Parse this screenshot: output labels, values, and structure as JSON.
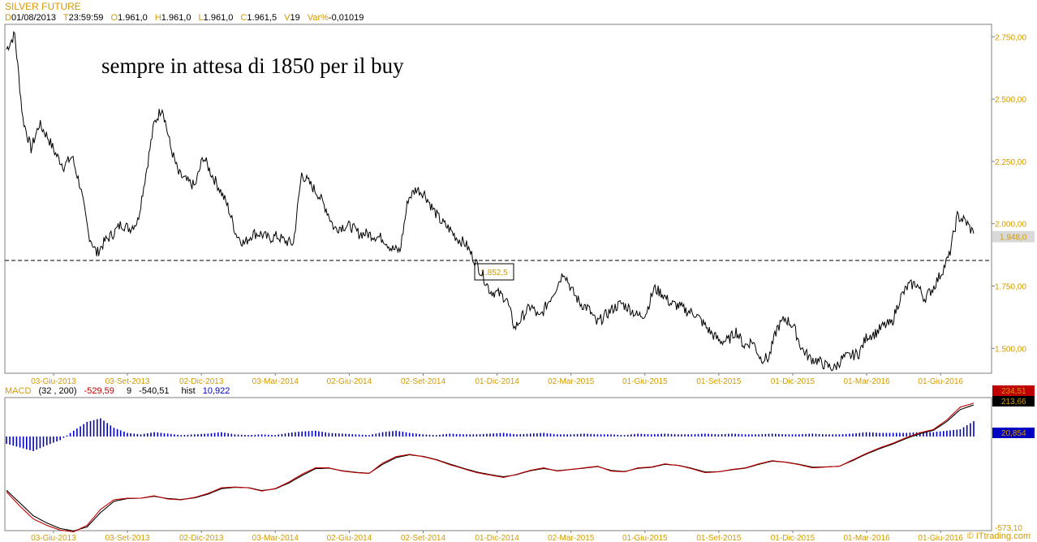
{
  "header": {
    "title": "SILVER FUTURE",
    "ohlc": [
      {
        "key": "D",
        "value": "01/08/2013"
      },
      {
        "key": "T",
        "value": "23:59:59"
      },
      {
        "key": "O",
        "value": "1.961,0"
      },
      {
        "key": "H",
        "value": "1.961,0"
      },
      {
        "key": "L",
        "value": "1.961,0"
      },
      {
        "key": "C",
        "value": "1.961,5"
      },
      {
        "key": "V",
        "value": "19"
      },
      {
        "key": "Var%",
        "value": "-0,01019"
      }
    ]
  },
  "annotation": "sempre in attesa di 1850 per il buy",
  "watermark": "© ITtrading.com",
  "chart_data": [
    {
      "type": "line",
      "x_ticks": [
        "03-Giu-2013",
        "03-Set-2013",
        "02-Dic-2013",
        "03-Mar-2014",
        "02-Giu-2014",
        "02-Set-2014",
        "01-Dic-2014",
        "02-Mar-2015",
        "01-Giu-2015",
        "01-Set-2015",
        "01-Dic-2015",
        "01-Mar-2016",
        "01-Giu-2016"
      ],
      "y_ticks": [
        "2.750,00",
        "2.500,00",
        "2.250,00",
        "2.000,00",
        "1.750,00",
        "1.500,00"
      ],
      "ylim": [
        1400,
        2800
      ],
      "last_value_label": "1.948,0",
      "level_line": {
        "value": 1852.5,
        "label": "1.852,5"
      },
      "series": [
        {
          "values": [
            2700,
            2760,
            2420,
            2300,
            2400,
            2350,
            2280,
            2230,
            2270,
            2150,
            1960,
            1880,
            1930,
            1960,
            2000,
            1980,
            2010,
            2200,
            2400,
            2470,
            2310,
            2200,
            2170,
            2150,
            2270,
            2200,
            2140,
            2070,
            1960,
            1920,
            1960,
            1960,
            1940,
            1950,
            1930,
            1920,
            2200,
            2160,
            2120,
            2060,
            1980,
            1990,
            1990,
            1960,
            1960,
            1950,
            1940,
            1900,
            1890,
            2100,
            2140,
            2120,
            2060,
            2010,
            1980,
            1940,
            1920,
            1860,
            1800,
            1730,
            1720,
            1700,
            1580,
            1630,
            1670,
            1620,
            1680,
            1740,
            1810,
            1730,
            1680,
            1660,
            1600,
            1630,
            1660,
            1680,
            1660,
            1630,
            1640,
            1740,
            1720,
            1680,
            1670,
            1650,
            1640,
            1600,
            1560,
            1530,
            1530,
            1570,
            1510,
            1530,
            1460,
            1460,
            1580,
            1620,
            1590,
            1500,
            1460,
            1450,
            1430,
            1420,
            1460,
            1470,
            1480,
            1550,
            1560,
            1590,
            1600,
            1700,
            1750,
            1760,
            1700,
            1740,
            1800,
            1870,
            2030,
            2010,
            1960
          ]
        }
      ]
    },
    {
      "type": "line",
      "title": "MACD",
      "params": "(32 , 200)",
      "macd_value": "-529,59",
      "signal_period": "9",
      "signal_value": "-540,51",
      "hist_label": "hist",
      "hist_value": "10,922",
      "ylim": [
        -573.1,
        260
      ],
      "bottom_label": "-573,10",
      "x_ticks": [
        "03-Giu-2013",
        "03-Set-2013",
        "02-Dic-2013",
        "03-Mar-2014",
        "02-Giu-2014",
        "02-Set-2014",
        "01-Dic-2014",
        "02-Mar-2015",
        "01-Giu-2015",
        "01-Set-2015",
        "01-Dic-2015",
        "01-Mar-2016",
        "01-Giu-2016"
      ],
      "value_labels": [
        {
          "value": "234,51",
          "color": "#c00000"
        },
        {
          "value": "213,66",
          "color": "#000000"
        },
        {
          "value": "20,854",
          "color": "#0000c0"
        }
      ],
      "series": [
        {
          "name": "MACD",
          "color": "#c00000",
          "values": [
            -330,
            -420,
            -500,
            -540,
            -570,
            -580,
            -540,
            -440,
            -380,
            -370,
            -370,
            -355,
            -375,
            -380,
            -365,
            -340,
            -305,
            -300,
            -305,
            -325,
            -310,
            -270,
            -220,
            -180,
            -180,
            -200,
            -210,
            -215,
            -150,
            -110,
            -95,
            -110,
            -130,
            -160,
            -185,
            -210,
            -225,
            -240,
            -220,
            -195,
            -180,
            -200,
            -190,
            -180,
            -170,
            -200,
            -205,
            -180,
            -175,
            -155,
            -165,
            -185,
            -210,
            -205,
            -190,
            -180,
            -155,
            -135,
            -145,
            -160,
            -180,
            -175,
            -170,
            -130,
            -90,
            -55,
            -25,
            10,
            40,
            60,
            120,
            200,
            225
          ]
        },
        {
          "name": "Signal",
          "color": "#000000",
          "values": [
            -320,
            -400,
            -480,
            -525,
            -560,
            -575,
            -550,
            -460,
            -390,
            -372,
            -370,
            -358,
            -372,
            -378,
            -368,
            -345,
            -310,
            -302,
            -304,
            -322,
            -312,
            -276,
            -228,
            -185,
            -182,
            -198,
            -208,
            -214,
            -158,
            -116,
            -98,
            -108,
            -128,
            -156,
            -182,
            -206,
            -222,
            -236,
            -222,
            -198,
            -184,
            -198,
            -190,
            -182,
            -172,
            -196,
            -203,
            -183,
            -177,
            -158,
            -164,
            -182,
            -206,
            -204,
            -192,
            -182,
            -158,
            -138,
            -144,
            -158,
            -176,
            -174,
            -170,
            -134,
            -94,
            -60,
            -30,
            5,
            34,
            55,
            110,
            185,
            214
          ]
        },
        {
          "name": "hist",
          "color": "#0000c0",
          "values": [
            -10,
            -15,
            -20,
            -12,
            -5,
            8,
            20,
            25,
            12,
            5,
            3,
            6,
            4,
            2,
            3,
            4,
            6,
            3,
            2,
            3,
            2,
            5,
            7,
            8,
            5,
            4,
            3,
            2,
            6,
            8,
            5,
            3,
            2,
            4,
            3,
            3,
            4,
            5,
            3,
            4,
            5,
            3,
            3,
            4,
            3,
            3,
            2,
            4,
            3,
            4,
            3,
            3,
            4,
            3,
            4,
            3,
            3,
            4,
            3,
            3,
            4,
            3,
            3,
            4,
            6,
            5,
            5,
            5,
            6,
            6,
            8,
            10,
            21
          ]
        }
      ]
    }
  ]
}
